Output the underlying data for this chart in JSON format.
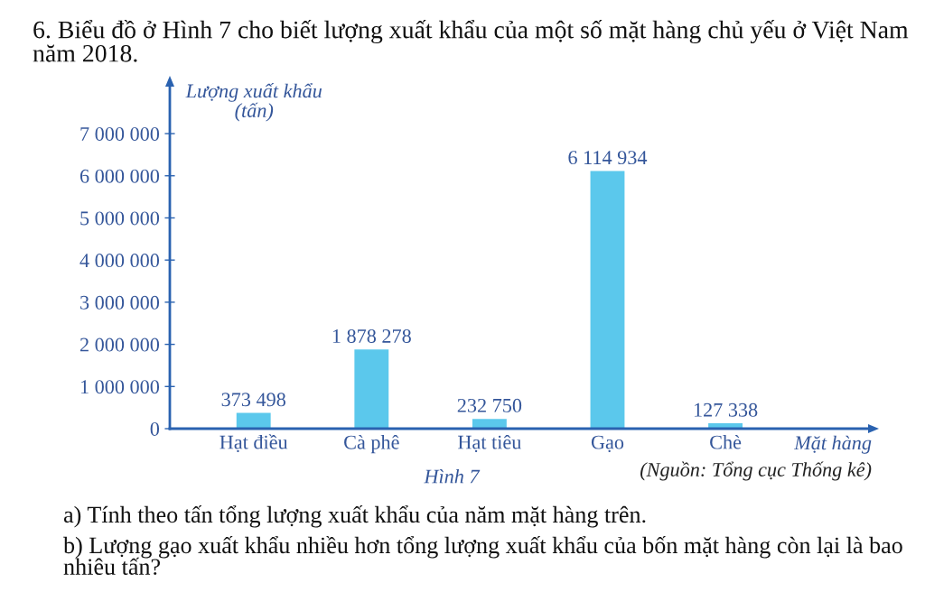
{
  "chart_data": {
    "type": "bar",
    "title": "6. Biểu đồ ở Hình 7 cho biết lượng xuất khẩu của một số mặt hàng chủ yếu ở Việt Nam năm 2018.",
    "xlabel": "Mặt hàng",
    "ylabel": "Lượng xuất khẩu\n(tấn)",
    "categories": [
      "Hạt điều",
      "Cà phê",
      "Hạt tiêu",
      "Gạo",
      "Chè"
    ],
    "values": [
      373498,
      1878278,
      232750,
      6114934,
      127338
    ],
    "value_labels": [
      "373 498",
      "1 878 278",
      "232 750",
      "6 114 934",
      "127 338"
    ],
    "color": "#5bc8ec",
    "ylim": [
      0,
      8200000
    ],
    "yticks": [
      0,
      {
        "value": 1000000,
        "label": "1 000 000"
      },
      {
        "value": 2000000,
        "label": "2 000 000"
      },
      {
        "value": 3000000,
        "label": "3 000 000"
      },
      {
        "value": 4000000,
        "label": "4 000 000"
      },
      {
        "value": 5000000,
        "label": "5 000 000"
      },
      {
        "value": 6000000,
        "label": "6 000 000"
      },
      {
        "value": 7000000,
        "label": "7 000 000"
      }
    ],
    "annotations": [
      "Hình 7",
      "(Nguồn: Tổng cục Thống kê)",
      "a) Tính theo tấn tổng lượng xuất khẩu của năm mặt hàng trên.",
      "b) Lượng gạo xuất khẩu nhiều hơn tổng lượng xuất khẩu của bốn mặt hàng còn lại là bao nhiêu tấn?"
    ]
  }
}
